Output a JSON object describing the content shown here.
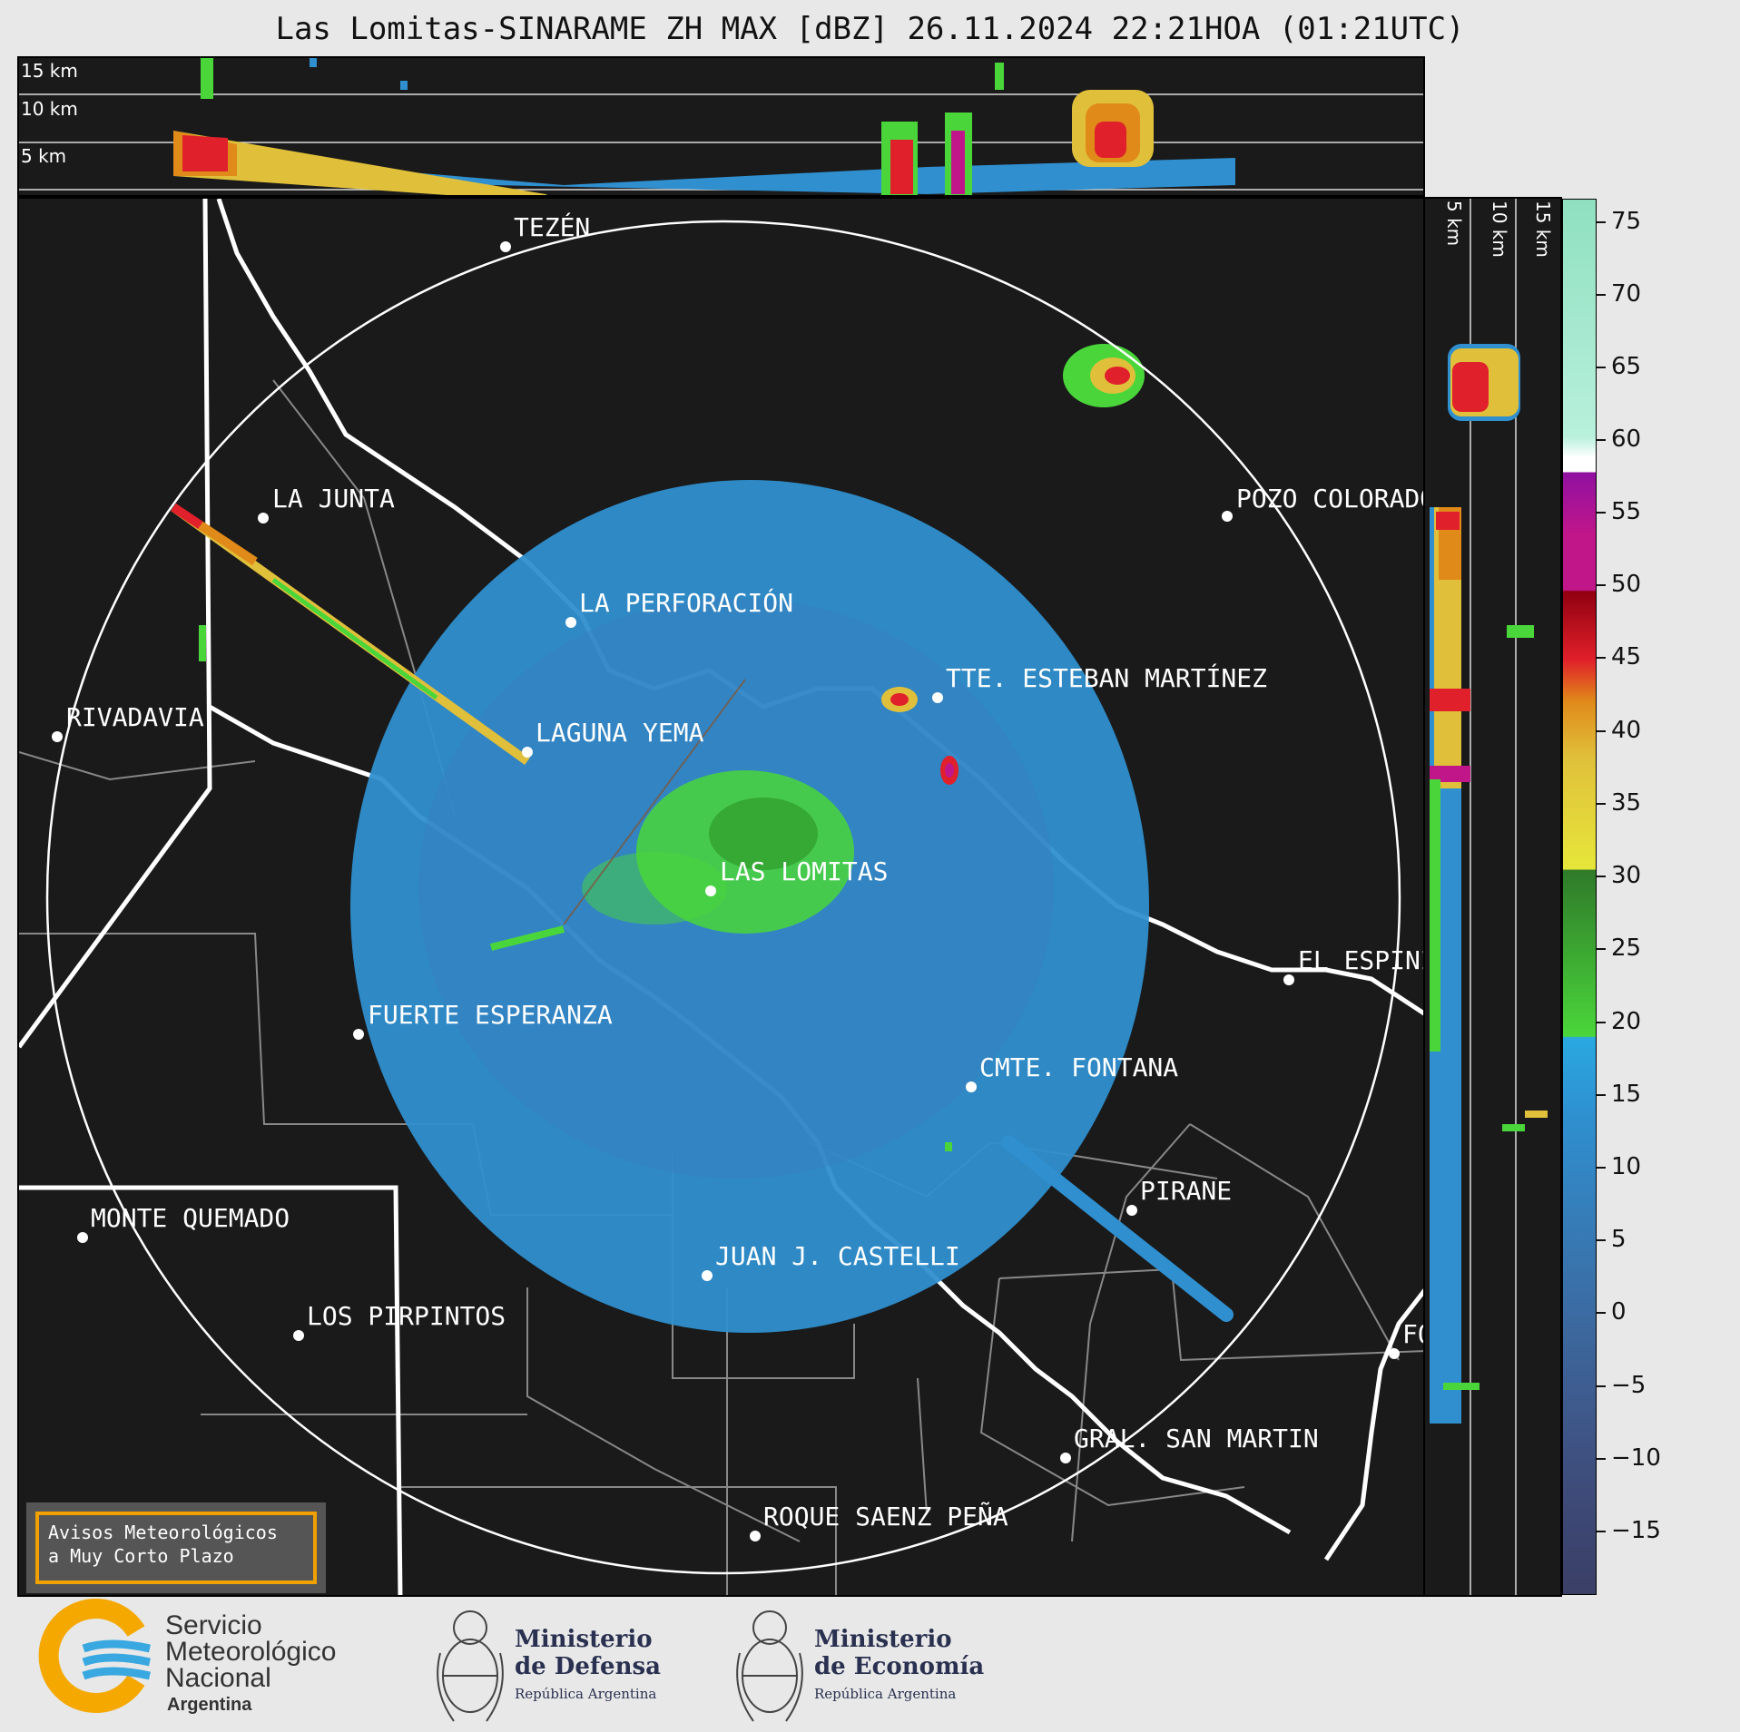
{
  "title": "Las Lomitas-SINARAME ZH MAX [dBZ] 26.11.2024 22:21HOA (01:21UTC)",
  "altitude_labels": [
    "15 km",
    "10 km",
    "5 km"
  ],
  "side_altitude_labels": [
    "5 km",
    "10 km",
    "15 km"
  ],
  "colorbar": {
    "unit": "dBZ",
    "min": -20,
    "max": 77,
    "ticks": [
      "75",
      "70",
      "65",
      "60",
      "55",
      "50",
      "45",
      "40",
      "35",
      "30",
      "25",
      "20",
      "15",
      "10",
      "5",
      "0",
      "−5",
      "−10",
      "−15"
    ],
    "colors": {
      "lt_m15": "#3a3f66",
      "m15_m5": "#3e4a78",
      "m5_0": "#3e5b8e",
      "0_10": "#3a70a8",
      "10_18": "#2f8fcf",
      "18_20": "#2aa8e0",
      "20_30": "#4ad63a",
      "30_40": "#e6e63a",
      "40_43": "#e08a1a",
      "43_50": "#e0202a",
      "50_58": "#c0168a",
      "58_60": "#9010a0",
      "60_62": "#ffffff",
      "62_77": "#b8f0dc"
    }
  },
  "cities": [
    {
      "name": "TEZÉN"
    },
    {
      "name": "LA JUNTA"
    },
    {
      "name": "POZO COLORADO"
    },
    {
      "name": "LA PERFORACIÓN"
    },
    {
      "name": "TTE. ESTEBAN MARTÍNEZ"
    },
    {
      "name": "RIVADAVIA"
    },
    {
      "name": "LAGUNA YEMA"
    },
    {
      "name": "LAS LOMITAS"
    },
    {
      "name": "EL ESPINILLO"
    },
    {
      "name": "FUERTE ESPERANZA"
    },
    {
      "name": "CMTE. FONTANA"
    },
    {
      "name": "PIRANE"
    },
    {
      "name": "MONTE QUEMADO"
    },
    {
      "name": "JUAN J. CASTELLI"
    },
    {
      "name": "LOS PIRPINTOS"
    },
    {
      "name": "GRAL. SAN MARTIN"
    },
    {
      "name": "ROQUE SAENZ PEÑA"
    },
    {
      "name": "FORMOSA"
    }
  ],
  "notice": {
    "line1": "Avisos Meteorológicos",
    "line2": "a Muy Corto Plazo"
  },
  "footer": {
    "smn_line1": "Servicio",
    "smn_line2": "Meteorológico",
    "smn_line3": "Nacional",
    "smn_line4": "Argentina",
    "defensa_line1": "Ministerio",
    "defensa_line2": "de Defensa",
    "defensa_sub": "República Argentina",
    "economia_line1": "Ministerio",
    "economia_line2": "de Economía",
    "economia_sub": "República Argentina"
  }
}
